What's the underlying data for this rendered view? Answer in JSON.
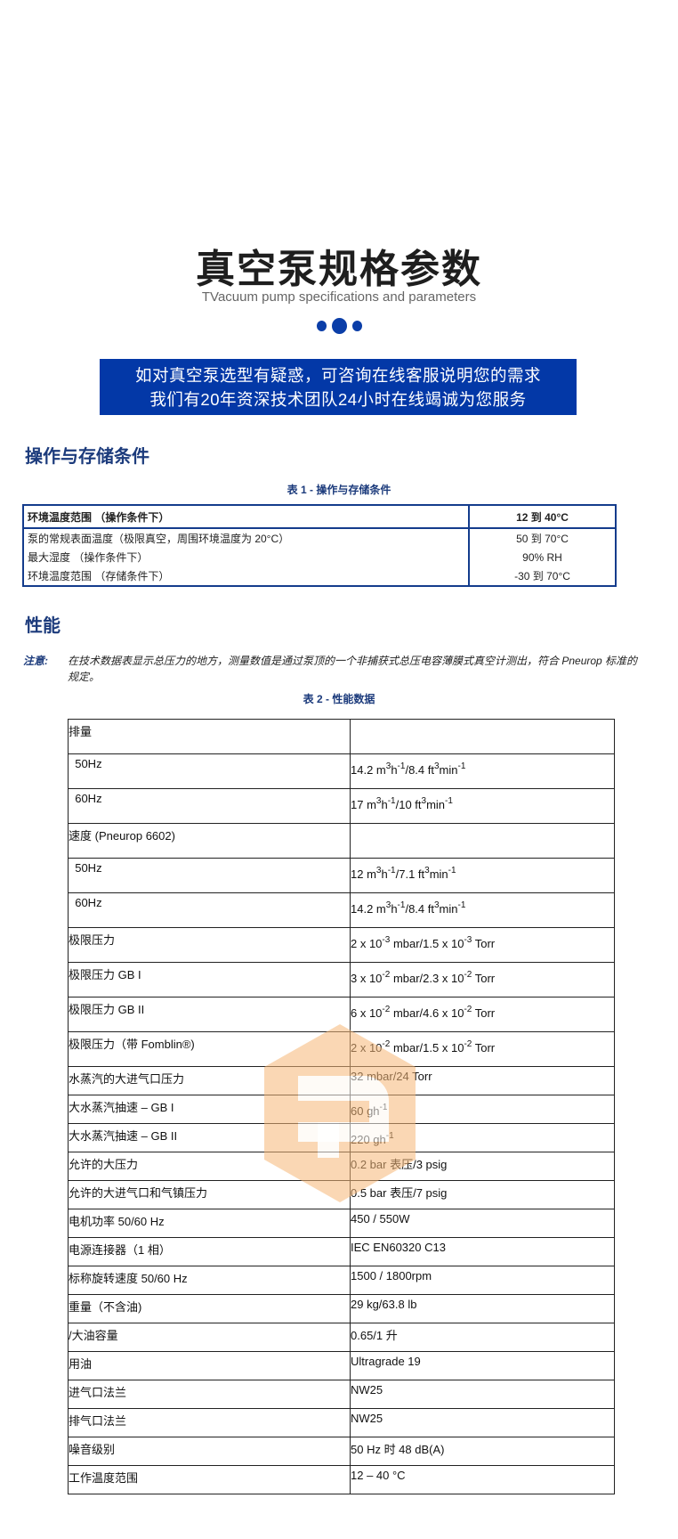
{
  "header": {
    "title": "真空泵规格参数",
    "subtitle": "TVacuum pump specifications and parameters",
    "accent_color": "#0338a7"
  },
  "banner": {
    "line1": "如对真空泵选型有疑惑，可咨询在线客服说明您的需求",
    "line2": "我们有20年资深技术团队24小时在线竭诚为您服务"
  },
  "section1": {
    "heading": "操作与存储条件",
    "caption": "表 1 - 操作与存储条件",
    "rows": [
      {
        "label": "环境温度范围 （操作条件下）",
        "value": "12 到 40°C"
      },
      {
        "label": "泵的常规表面温度（极限真空，周围环境温度为 20°C）",
        "value": "50 到 70°C"
      },
      {
        "label": "最大湿度 （操作条件下）",
        "value": "90% RH"
      },
      {
        "label": "环境温度范围 （存储条件下）",
        "value": "-30 到 70°C"
      }
    ]
  },
  "section2": {
    "heading": "性能",
    "note_label": "注意:",
    "note_text": "在技术数据表显示总压力的地方，测量数值是通过泵顶的一个非捕获式总压电容薄膜式真空计测出，符合 Pneurop 标准的规定。",
    "caption": "表 2 - 性能数据",
    "rows": [
      {
        "label": "排量",
        "value": []
      },
      {
        "label": "  50Hz",
        "value": [
          [
            "14.2 m"
          ],
          [
            "3",
            "s"
          ],
          [
            "h"
          ],
          [
            "-1",
            "s"
          ],
          [
            "/8.4 ft"
          ],
          [
            "3",
            "s"
          ],
          [
            "min"
          ],
          [
            "-1",
            "s"
          ]
        ]
      },
      {
        "label": "  60Hz",
        "value": [
          [
            "17 m"
          ],
          [
            "3",
            "s"
          ],
          [
            "h"
          ],
          [
            "-1",
            "s"
          ],
          [
            "/10 ft"
          ],
          [
            "3",
            "s"
          ],
          [
            "min"
          ],
          [
            "-1",
            "s"
          ]
        ]
      },
      {
        "label": "速度 (Pneurop 6602)",
        "value": []
      },
      {
        "label": "  50Hz",
        "value": [
          [
            "12 m"
          ],
          [
            "3",
            "s"
          ],
          [
            "h"
          ],
          [
            "-1",
            "s"
          ],
          [
            "/7.1 ft"
          ],
          [
            "3",
            "s"
          ],
          [
            "min"
          ],
          [
            "-1",
            "s"
          ]
        ]
      },
      {
        "label": "  60Hz",
        "value": [
          [
            "14.2 m"
          ],
          [
            "3",
            "s"
          ],
          [
            "h"
          ],
          [
            "-1",
            "s"
          ],
          [
            "/8.4 ft"
          ],
          [
            "3",
            "s"
          ],
          [
            "min"
          ],
          [
            "-1",
            "s"
          ]
        ]
      },
      {
        "label": "极限压力",
        "value": [
          [
            "2 x 10"
          ],
          [
            "-3",
            "s"
          ],
          [
            " mbar/1.5 x 10"
          ],
          [
            "-3",
            "s"
          ],
          [
            " Torr"
          ]
        ]
      },
      {
        "label": "极限压力 GB I",
        "value": [
          [
            "3 x 10"
          ],
          [
            "-2",
            "s"
          ],
          [
            " mbar/2.3 x 10"
          ],
          [
            "-2",
            "s"
          ],
          [
            " Torr"
          ]
        ]
      },
      {
        "label": "极限压力 GB II",
        "value": [
          [
            "6 x 10"
          ],
          [
            "-2",
            "s"
          ],
          [
            " mbar/4.6 x 10"
          ],
          [
            "-2",
            "s"
          ],
          [
            " Torr"
          ]
        ]
      },
      {
        "label": "极限压力（带 Fomblin®)",
        "value": [
          [
            "2 x 10"
          ],
          [
            "-2",
            "s"
          ],
          [
            " mbar/1.5 x 10"
          ],
          [
            "-2",
            "s"
          ],
          [
            " Torr"
          ]
        ]
      },
      {
        "label": "水蒸汽的大进气口压力",
        "value": [
          [
            "32 mbar/24 Torr"
          ]
        ]
      },
      {
        "label": "大水蒸汽抽速 – GB I",
        "value": [
          [
            "60 gh"
          ],
          [
            "-1",
            "s"
          ]
        ]
      },
      {
        "label": "大水蒸汽抽速 – GB II",
        "value": [
          [
            "220 gh"
          ],
          [
            "-1",
            "s"
          ]
        ]
      },
      {
        "label": "允许的大压力",
        "value": [
          [
            "0.2 bar 表压/3 psig"
          ]
        ]
      },
      {
        "label": "允许的大进气口和气镇压力",
        "value": [
          [
            "0.5 bar 表压/7 psig"
          ]
        ]
      },
      {
        "label": "电机功率 50/60 Hz",
        "value": [
          [
            "450 / 550W"
          ]
        ]
      },
      {
        "label": "电源连接器（1 相）",
        "value": [
          [
            "IEC EN60320 C13"
          ]
        ]
      },
      {
        "label": "标称旋转速度 50/60 Hz",
        "value": [
          [
            "1500 / 1800rpm"
          ]
        ]
      },
      {
        "label": "重量（不含油)",
        "value": [
          [
            "29 kg/63.8 lb"
          ]
        ]
      },
      {
        "label": "/大油容量",
        "value": [
          [
            "0.65/1 升"
          ]
        ]
      },
      {
        "label": "用油",
        "value": [
          [
            "Ultragrade 19"
          ]
        ]
      },
      {
        "label": "进气口法兰",
        "value": [
          [
            "NW25"
          ]
        ]
      },
      {
        "label": "排气口法兰",
        "value": [
          [
            "NW25"
          ]
        ]
      },
      {
        "label": "噪音级别",
        "value": [
          [
            "50 Hz 时 48 dB(A)"
          ]
        ]
      },
      {
        "label": "工作温度范围",
        "value": [
          [
            "12 – 40 °C"
          ]
        ]
      }
    ]
  },
  "watermark": {
    "icon": "hexagon-logo-icon",
    "color": "#f6b878"
  }
}
